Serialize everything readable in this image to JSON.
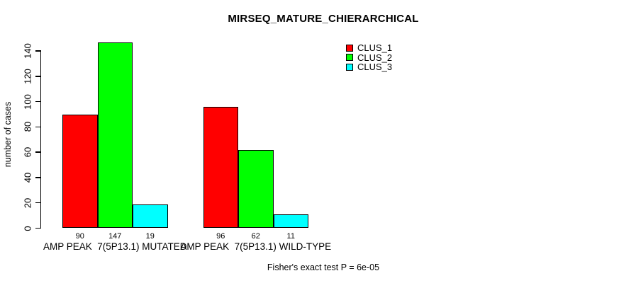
{
  "figure": {
    "title": "MIRSEQ_MATURE_CHIERARCHICAL",
    "footnote": "Fisher's exact test P = 6e-05"
  },
  "chart_data": {
    "type": "bar",
    "title": "MIRSEQ_MATURE_CHIERARCHICAL",
    "xlabel": "",
    "ylabel": "number of cases",
    "categories": [
      "AMP PEAK  7(5P13.1) MUTATED",
      "AMP PEAK  7(5P13.1) WILD-TYPE"
    ],
    "series": [
      {
        "name": "CLUS_1",
        "color": "#ff0000",
        "values": [
          90,
          96
        ]
      },
      {
        "name": "CLUS_2",
        "color": "#00ff00",
        "values": [
          147,
          62
        ]
      },
      {
        "name": "CLUS_3",
        "color": "#00ffff",
        "values": [
          19,
          11
        ]
      }
    ],
    "bar_value_labels": [
      [
        90,
        147,
        19
      ],
      [
        96,
        62,
        11
      ]
    ],
    "yticks": [
      0,
      20,
      40,
      60,
      80,
      100,
      120,
      140
    ],
    "ylim": [
      0,
      150
    ],
    "grid": false,
    "legend_position": "top-right-inside",
    "annotation": "Fisher's exact test P = 6e-05"
  }
}
